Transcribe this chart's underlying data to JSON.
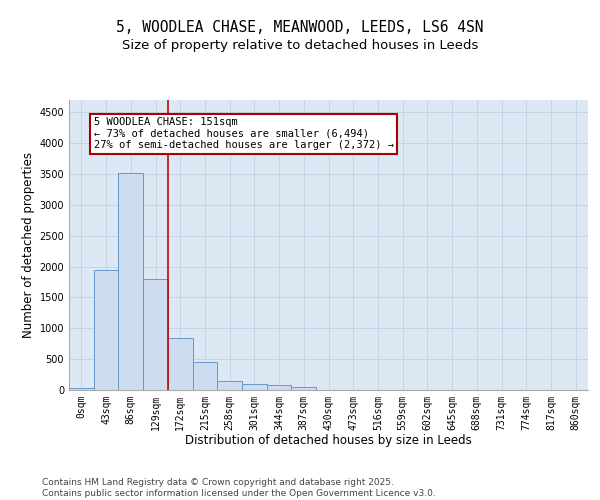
{
  "title_line1": "5, WOODLEA CHASE, MEANWOOD, LEEDS, LS6 4SN",
  "title_line2": "Size of property relative to detached houses in Leeds",
  "xlabel": "Distribution of detached houses by size in Leeds",
  "ylabel": "Number of detached properties",
  "bar_labels": [
    "0sqm",
    "43sqm",
    "86sqm",
    "129sqm",
    "172sqm",
    "215sqm",
    "258sqm",
    "301sqm",
    "344sqm",
    "387sqm",
    "430sqm",
    "473sqm",
    "516sqm",
    "559sqm",
    "602sqm",
    "645sqm",
    "688sqm",
    "731sqm",
    "774sqm",
    "817sqm",
    "860sqm"
  ],
  "bar_values": [
    30,
    1950,
    3520,
    1800,
    850,
    450,
    150,
    100,
    75,
    55,
    0,
    0,
    0,
    0,
    0,
    0,
    0,
    0,
    0,
    0,
    0
  ],
  "bar_color": "#cddcef",
  "bar_edge_color": "#6699cc",
  "grid_color": "#c5cfe0",
  "bg_color": "#dde8f5",
  "red_line_x": 3.5,
  "annotation_text": "5 WOODLEA CHASE: 151sqm\n← 73% of detached houses are smaller (6,494)\n27% of semi-detached houses are larger (2,372) →",
  "annotation_box_color": "#ffffff",
  "annotation_box_edge": "#aa0000",
  "ylim": [
    0,
    4700
  ],
  "yticks": [
    0,
    500,
    1000,
    1500,
    2000,
    2500,
    3000,
    3500,
    4000,
    4500
  ],
  "footnote": "Contains HM Land Registry data © Crown copyright and database right 2025.\nContains public sector information licensed under the Open Government Licence v3.0.",
  "title_fontsize": 10.5,
  "subtitle_fontsize": 9.5,
  "axis_label_fontsize": 8.5,
  "tick_fontsize": 7,
  "annotation_fontsize": 7.5,
  "footnote_fontsize": 6.5
}
